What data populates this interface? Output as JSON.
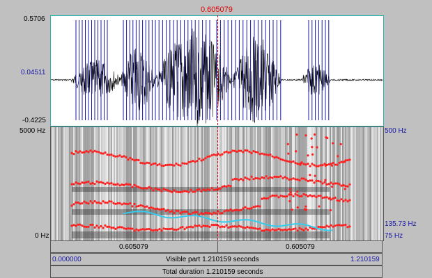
{
  "cursor": {
    "time": "0.605079"
  },
  "waveform": {
    "max_label": "0.5706",
    "mid_label": "0.04511",
    "min_label": "-0.4225"
  },
  "spectrogram": {
    "freq_top": "5000 Hz",
    "freq_bottom": "0 Hz",
    "pitch_top": "500 Hz",
    "pitch_value": "135.73 Hz",
    "pitch_bottom": "75 Hz"
  },
  "time_bar": {
    "left_time": "0.605079",
    "right_time": "0.605079"
  },
  "visible_bar": {
    "start": "0.000000",
    "label": "Visible part 1.210159 seconds",
    "end": "1.210159"
  },
  "total_bar": {
    "label": "Total duration 1.210159 seconds"
  },
  "colors": {
    "formant": "#ff2020",
    "pitch": "#33ccee",
    "pulse": "#1a1aa8",
    "cursor": "#e00000"
  }
}
